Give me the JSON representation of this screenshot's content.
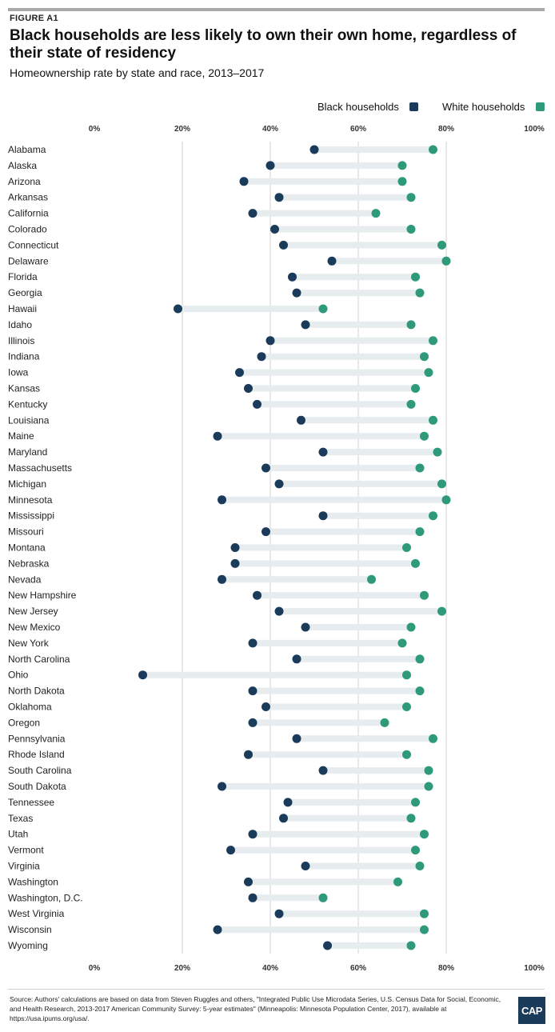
{
  "figure_label": "FIGURE A1",
  "brand": "CAP",
  "source": "Source: Authors' calculations are based on data from Steven Ruggles and others, \"Integrated Public Use Microdata Series, U.S. Census Data for Social, Economic, and Health Research, 2013-2017 American Community Survey: 5-year estimates\" (Minneapolis: Minnesota Population Center, 2017), available at https://usa.ipums.org/usa/.",
  "colors": {
    "black": "#1b3b5a",
    "white": "#2e9a7a",
    "connector": "#e7ecef",
    "grid": "#d0d0d0"
  },
  "chart_data": {
    "type": "dumbbell",
    "title": "Black households are less likely to own their own home, regardless of their state of residency",
    "subtitle": "Homeownership rate by state and race, 2013–2017",
    "xlim": [
      0,
      100
    ],
    "xticks": [
      "0%",
      "20%",
      "40%",
      "60%",
      "80%",
      "100%"
    ],
    "legend_position": "top-right",
    "series": [
      {
        "name": "Black households",
        "color": "#1b3b5a"
      },
      {
        "name": "White households",
        "color": "#2e9a7a"
      }
    ],
    "categories": [
      "Alabama",
      "Alaska",
      "Arizona",
      "Arkansas",
      "California",
      "Colorado",
      "Connecticut",
      "Delaware",
      "Florida",
      "Georgia",
      "Hawaii",
      "Idaho",
      "Illinois",
      "Indiana",
      "Iowa",
      "Kansas",
      "Kentucky",
      "Louisiana",
      "Maine",
      "Maryland",
      "Massachusetts",
      "Michigan",
      "Minnesota",
      "Mississippi",
      "Missouri",
      "Montana",
      "Nebraska",
      "Nevada",
      "New Hampshire",
      "New Jersey",
      "New Mexico",
      "New York",
      "North Carolina",
      "Ohio",
      "North Dakota",
      "Oklahoma",
      "Oregon",
      "Pennsylvania",
      "Rhode Island",
      "South Carolina",
      "South Dakota",
      "Tennessee",
      "Texas",
      "Utah",
      "Vermont",
      "Virginia",
      "Washington",
      "Washington, D.C.",
      "West Virginia",
      "Wisconsin",
      "Wyoming"
    ],
    "black": [
      50,
      40,
      34,
      42,
      36,
      41,
      43,
      54,
      45,
      46,
      19,
      48,
      40,
      38,
      33,
      35,
      37,
      47,
      28,
      52,
      39,
      42,
      29,
      52,
      39,
      32,
      32,
      29,
      37,
      42,
      48,
      36,
      46,
      11,
      36,
      39,
      36,
      46,
      35,
      52,
      29,
      44,
      43,
      36,
      31,
      48,
      35,
      36,
      42,
      28,
      53
    ],
    "white": [
      77,
      70,
      70,
      72,
      64,
      72,
      79,
      80,
      73,
      74,
      52,
      72,
      77,
      75,
      76,
      73,
      72,
      77,
      75,
      78,
      74,
      79,
      80,
      77,
      74,
      71,
      73,
      63,
      75,
      79,
      72,
      70,
      74,
      71,
      74,
      71,
      66,
      77,
      71,
      76,
      76,
      73,
      72,
      75,
      73,
      74,
      69,
      52,
      75,
      75,
      72
    ]
  }
}
